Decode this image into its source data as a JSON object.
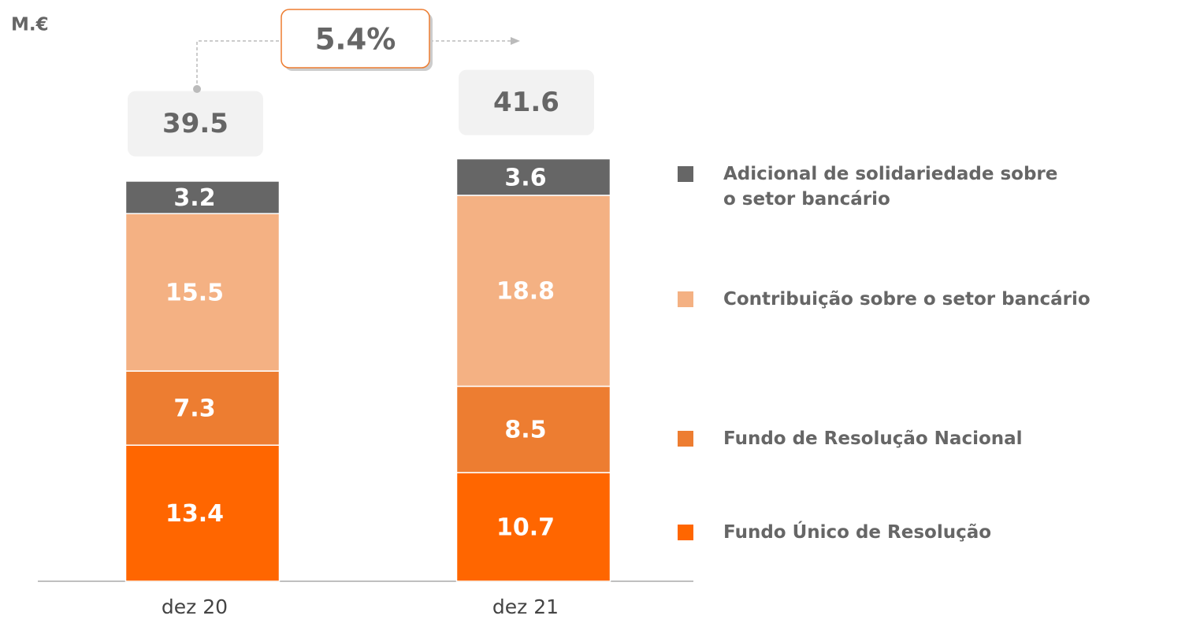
{
  "chart_data": {
    "type": "stacked_bar",
    "unit_label": "M.€",
    "categories": [
      "dez 20",
      "dez 21"
    ],
    "series": [
      {
        "name": "Fundo Único de Resolução",
        "color": "#ff6600",
        "values": [
          13.4,
          10.7
        ]
      },
      {
        "name": "Fundo de Resolução Nacional",
        "color": "#ed7d31",
        "values": [
          7.3,
          8.5
        ]
      },
      {
        "name": "Contribuição sobre o setor bancário",
        "color": "#f4b183",
        "values": [
          15.5,
          18.8
        ]
      },
      {
        "name": "Adicional de solidariedade sobre o setor bancário",
        "color": "#666666",
        "values": [
          3.2,
          3.6
        ]
      }
    ],
    "totals": [
      39.5,
      41.6
    ],
    "annotation": "5.4%",
    "ylim": [
      0,
      57
    ]
  }
}
